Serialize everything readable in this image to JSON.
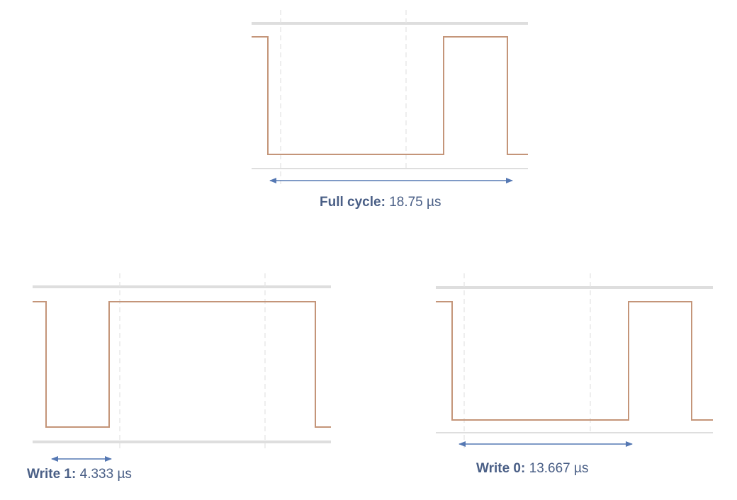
{
  "colors": {
    "signal": "#c49579",
    "rail": "#dedede",
    "divider": "#e4e4e4",
    "arrow": "#5578b3",
    "text": "#4a5f86"
  },
  "diagrams": [
    {
      "id": "full-cycle",
      "label": "Full cycle:",
      "value": "18.75 µs"
    },
    {
      "id": "write-1",
      "label": "Write 1:",
      "value": "4.333 µs"
    },
    {
      "id": "write-0",
      "label": "Write 0:",
      "value": "13.667 µs"
    }
  ]
}
